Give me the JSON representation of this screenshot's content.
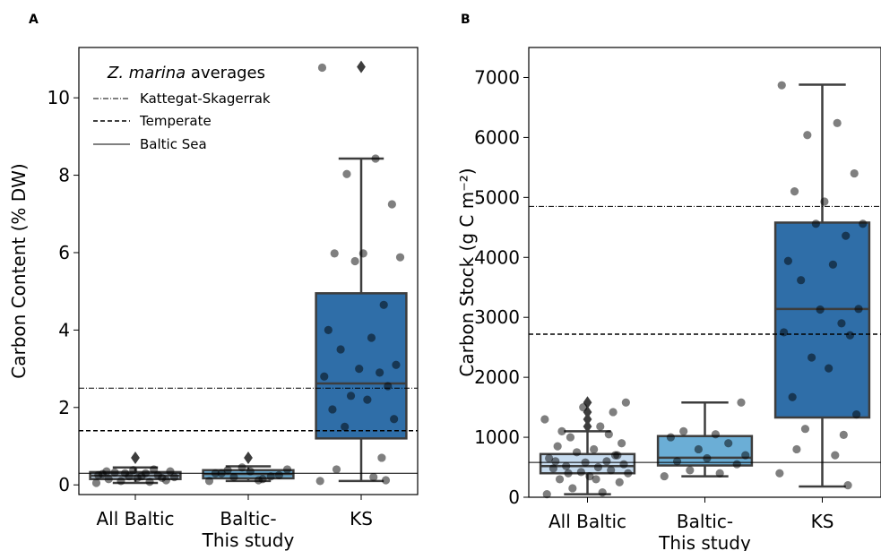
{
  "panels": [
    {
      "label": "A"
    },
    {
      "label": "B"
    }
  ],
  "legend": {
    "title_italic": "Z. marina",
    "title_rest": " averages",
    "entries": [
      "Kattegat-Skagerrak",
      "Temperate",
      "Baltic Sea"
    ]
  },
  "chart_data": [
    {
      "type": "box",
      "panel": "A",
      "ylabel": "Carbon Content (% DW)",
      "categories": [
        "All Baltic",
        "Baltic-\nThis study",
        "KS"
      ],
      "ylim": [
        -0.25,
        11.3
      ],
      "yticks": [
        0,
        2,
        4,
        6,
        8,
        10
      ],
      "box_colors": [
        "#c6dbef",
        "#6baed6",
        "#2f6ea8"
      ],
      "boxes": [
        {
          "q1": 0.15,
          "median": 0.24,
          "q3": 0.33,
          "whisker_low": 0.05,
          "whisker_high": 0.45,
          "fliers": [
            0.7
          ]
        },
        {
          "q1": 0.17,
          "median": 0.28,
          "q3": 0.38,
          "whisker_low": 0.1,
          "whisker_high": 0.48,
          "fliers": [
            0.7
          ]
        },
        {
          "q1": 1.2,
          "median": 2.62,
          "q3": 4.95,
          "whisker_low": 0.1,
          "whisker_high": 8.43,
          "fliers": [
            10.8
          ]
        }
      ],
      "points": [
        [
          0.05,
          0.08,
          0.1,
          0.12,
          0.15,
          0.18,
          0.2,
          0.22,
          0.25,
          0.28,
          0.3,
          0.32,
          0.35,
          0.38,
          0.4,
          0.25,
          0.18,
          0.3,
          0.22,
          0.35
        ],
        [
          0.1,
          0.15,
          0.2,
          0.25,
          0.3,
          0.35,
          0.4,
          0.45,
          0.22,
          0.3,
          0.12,
          0.38
        ],
        [
          10.78,
          8.43,
          8.03,
          7.25,
          5.98,
          5.98,
          5.88,
          5.78,
          4.65,
          4.0,
          3.8,
          3.5,
          3.1,
          3.0,
          2.9,
          2.8,
          2.55,
          2.3,
          2.2,
          1.95,
          1.7,
          1.5,
          0.7,
          0.4,
          0.2,
          0.1,
          0.12
        ]
      ],
      "reference_lines": [
        {
          "name": "Kattegat-Skagerrak",
          "value": 2.5,
          "style": "dashdot"
        },
        {
          "name": "Temperate",
          "value": 1.4,
          "style": "dashed"
        },
        {
          "name": "Baltic Sea",
          "value": 0.3,
          "style": "solid"
        }
      ]
    },
    {
      "type": "box",
      "panel": "B",
      "ylabel": "Carbon Stock (g C m⁻²)",
      "categories": [
        "All Baltic",
        "Baltic-\nThis study",
        "KS"
      ],
      "ylim": [
        0,
        7500
      ],
      "yticks": [
        0,
        1000,
        2000,
        3000,
        4000,
        5000,
        6000,
        7000
      ],
      "box_colors": [
        "#c6dbef",
        "#6baed6",
        "#2f6ea8"
      ],
      "boxes": [
        {
          "q1": 400,
          "median": 520,
          "q3": 720,
          "whisker_low": 50,
          "whisker_high": 1100,
          "fliers": [
            1180,
            1300,
            1420,
            1580
          ]
        },
        {
          "q1": 530,
          "median": 660,
          "q3": 1020,
          "whisker_low": 350,
          "whisker_high": 1580,
          "fliers": []
        },
        {
          "q1": 1330,
          "median": 3140,
          "q3": 4580,
          "whisker_low": 180,
          "whisker_high": 6880,
          "fliers": []
        }
      ],
      "points": [
        [
          50,
          80,
          150,
          250,
          300,
          350,
          400,
          420,
          450,
          480,
          500,
          520,
          550,
          580,
          600,
          650,
          700,
          750,
          800,
          850,
          900,
          1000,
          1050,
          1100,
          1180,
          1300,
          1420,
          1500,
          1580,
          400,
          300,
          600,
          700
        ],
        [
          350,
          400,
          450,
          550,
          600,
          650,
          700,
          800,
          900,
          1000,
          1050,
          1100,
          1580
        ],
        [
          6870,
          6240,
          6040,
          5400,
          5100,
          4930,
          4560,
          4560,
          4360,
          3940,
          3880,
          3620,
          3140,
          3130,
          2900,
          2750,
          2700,
          2330,
          2150,
          1670,
          1380,
          1140,
          1040,
          800,
          700,
          400,
          200
        ]
      ],
      "reference_lines": [
        {
          "name": "Kattegat-Skagerrak",
          "value": 4850,
          "style": "dashdot"
        },
        {
          "name": "Temperate",
          "value": 2720,
          "style": "dashed"
        },
        {
          "name": "Baltic Sea",
          "value": 580,
          "style": "solid"
        }
      ]
    }
  ]
}
